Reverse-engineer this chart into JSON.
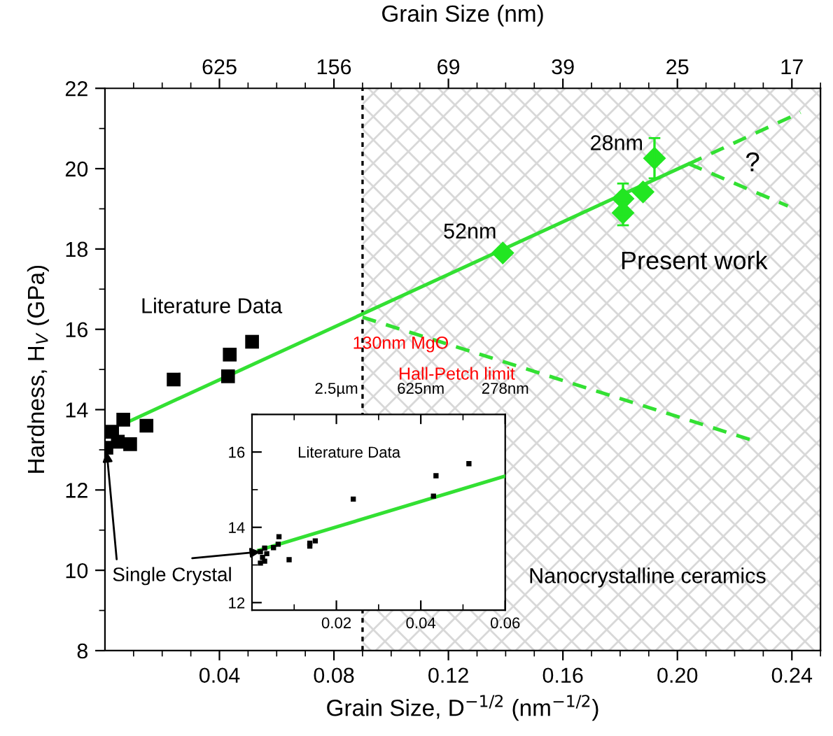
{
  "chart_data": [
    {
      "type": "scatter",
      "xlabel": "Grain Size, D$^{−1/2}$ (nm$^{−1/2}$)",
      "ylabel": "Hardness, H$_{V}$ (GPa)",
      "x2label": "Grain Size (nm)",
      "xlim": [
        0,
        0.25
      ],
      "ylim": [
        8,
        22
      ],
      "xticks": [
        {
          "value": 0.01,
          "label": null
        },
        {
          "value": 0.02,
          "label": null
        },
        {
          "value": 0.03,
          "label": null
        },
        0.04,
        {
          "value": 0.05,
          "label": null
        },
        {
          "value": 0.06,
          "label": null
        },
        {
          "value": 0.07,
          "label": null
        },
        0.08,
        {
          "value": 0.09,
          "label": null
        },
        {
          "value": 0.1,
          "label": null
        },
        {
          "value": 0.11,
          "label": null
        },
        0.12,
        {
          "value": 0.13,
          "label": null
        },
        {
          "value": 0.14,
          "label": null
        },
        {
          "value": 0.15,
          "label": null
        },
        0.16,
        {
          "value": 0.17,
          "label": null
        },
        {
          "value": 0.18,
          "label": null
        },
        {
          "value": 0.19,
          "label": null
        },
        {
          "value": 0.2,
          "label": "0.20"
        },
        {
          "value": 0.21,
          "label": null
        },
        {
          "value": 0.22,
          "label": null
        },
        {
          "value": 0.23,
          "label": null
        },
        0.24,
        {
          "value": 0.25,
          "label": null
        }
      ],
      "yticks": [
        8,
        {
          "value": 9,
          "label": null
        },
        10,
        {
          "value": 11,
          "label": null
        },
        12,
        {
          "value": 13,
          "label": null
        },
        14,
        {
          "value": 15,
          "label": null
        },
        16,
        {
          "value": 17,
          "label": null
        },
        18,
        {
          "value": 19,
          "label": null
        },
        20,
        {
          "value": 21,
          "label": null
        },
        22
      ],
      "series": [
        {
          "name": "Literature Data",
          "color": "#000000",
          "marker": "square",
          "x": [
            0.0005,
            0.0025,
            0.0045,
            0.0064,
            0.0088,
            0.0145,
            0.024,
            0.043,
            0.0436,
            0.0514
          ],
          "values": [
            13.05,
            13.45,
            13.2,
            13.75,
            13.14,
            13.6,
            14.75,
            14.83,
            15.37,
            15.69
          ]
        },
        {
          "type": "line",
          "color": "#33e033",
          "line_style": "solid",
          "marker": "none",
          "x": [
            0.0073,
            0.204
          ],
          "values": [
            13.67,
            20.12
          ]
        },
        {
          "type": "line",
          "color": "#33e033",
          "line_style": "dashed",
          "marker": "none",
          "x": [
            0.204,
            0.243
          ],
          "values": [
            20.12,
            21.4
          ]
        },
        {
          "type": "line",
          "color": "#33e033",
          "line_style": "dashed",
          "marker": "none",
          "x": [
            0.204,
            0.2386
          ],
          "values": [
            20.12,
            19.07
          ]
        },
        {
          "type": "line",
          "color": "#33e033",
          "line_style": "dashed",
          "marker": "none",
          "x": [
            0.09,
            0.227
          ],
          "values": [
            16.3,
            13.22
          ]
        },
        {
          "name": "Present work",
          "color": "#22e622",
          "marker": "diamond",
          "x": [
            0.139,
            0.181,
            0.181,
            0.188,
            0.192
          ],
          "values": [
            17.9,
            19.25,
            18.9,
            19.42,
            20.26
          ],
          "errors": [
            null,
            0.38,
            0.31,
            null,
            0.5
          ]
        }
      ],
      "ref_lines": [
        {
          "axis": "x",
          "value": 0.09,
          "color": "#000000",
          "line_style": "dotted"
        }
      ],
      "bands": [
        {
          "axis": "x",
          "from": 0.09,
          "to": 0.25,
          "label": "Nanocrystalline ceramics",
          "color": "#d8d8d8"
        }
      ],
      "annotations": [
        "130nm MgO",
        "Hall-Petch limit",
        "?",
        "28nm",
        "52nm",
        {
          "text": "Single Crystal",
          "x": 0.0005,
          "y": 13.05
        },
        "625",
        "156",
        "69",
        "39",
        "25",
        "17"
      ],
      "grid": false,
      "legend": false
    },
    {
      "type": "scatter",
      "xlim": [
        0,
        0.06
      ],
      "ylim": [
        11.8,
        17
      ],
      "xticks": [
        {
          "value": 0.01,
          "label": null
        },
        0.02,
        {
          "value": 0.03,
          "label": null
        },
        0.04,
        {
          "value": 0.05,
          "label": null
        },
        0.06
      ],
      "annotations": [
        "2.5µm",
        "625nm",
        "278nm"
      ],
      "yticks": [
        12,
        {
          "value": 13,
          "label": null
        },
        14,
        {
          "value": 15,
          "label": null
        },
        16,
        {
          "value": 17,
          "label": null
        }
      ],
      "series": [
        {
          "name": "Literature Data",
          "color": "#000000",
          "marker": "square",
          "x": [
            0.002,
            0.0025,
            0.003,
            0.0035,
            0.002,
            0.003,
            0.0051,
            0.0062,
            0.0064,
            0.0088,
            0.0137,
            0.0137,
            0.015,
            0.024,
            0.043,
            0.0436,
            0.0514
          ],
          "values": [
            13.35,
            13.2,
            13.1,
            13.3,
            13.05,
            13.45,
            13.46,
            13.55,
            13.75,
            13.14,
            13.5,
            13.58,
            13.64,
            14.75,
            14.83,
            15.37,
            15.69
          ]
        },
        {
          "type": "line",
          "color": "#33e033",
          "line_style": "solid",
          "marker": "none",
          "x": [
            0.0016,
            0.06
          ],
          "values": [
            13.39,
            15.36
          ]
        }
      ],
      "grid": false,
      "legend": false
    }
  ]
}
